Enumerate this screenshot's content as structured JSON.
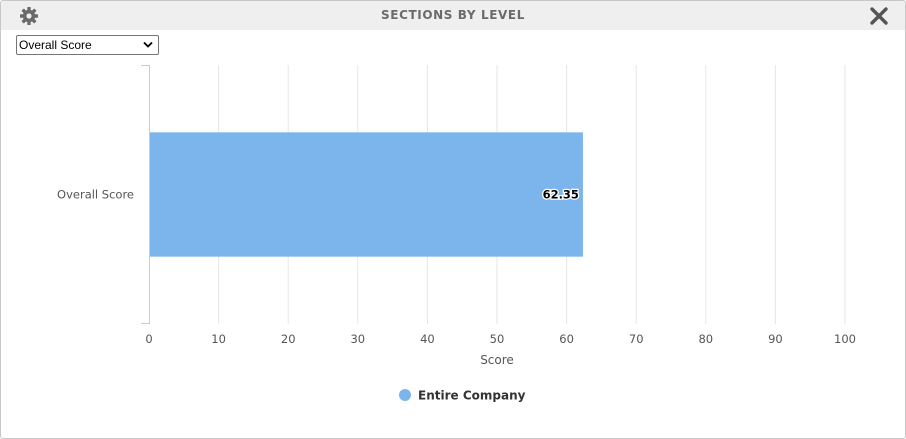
{
  "header": {
    "title": "SECTIONS BY LEVEL",
    "settings_icon": "gear-icon",
    "close_icon": "close-icon"
  },
  "filter": {
    "selected": "Overall Score"
  },
  "chart_data": {
    "type": "bar",
    "orientation": "horizontal",
    "categories": [
      "Overall Score"
    ],
    "series": [
      {
        "name": "Entire Company",
        "values": [
          62.35
        ],
        "color": "#7cb5ec"
      }
    ],
    "data_labels": [
      "62.35"
    ],
    "xlabel": "Score",
    "ylabel": "",
    "xlim": [
      0,
      100
    ],
    "xticks": [
      0,
      10,
      20,
      30,
      40,
      50,
      60,
      70,
      80,
      90,
      100
    ],
    "grid": true,
    "legend": "bottom-center"
  }
}
